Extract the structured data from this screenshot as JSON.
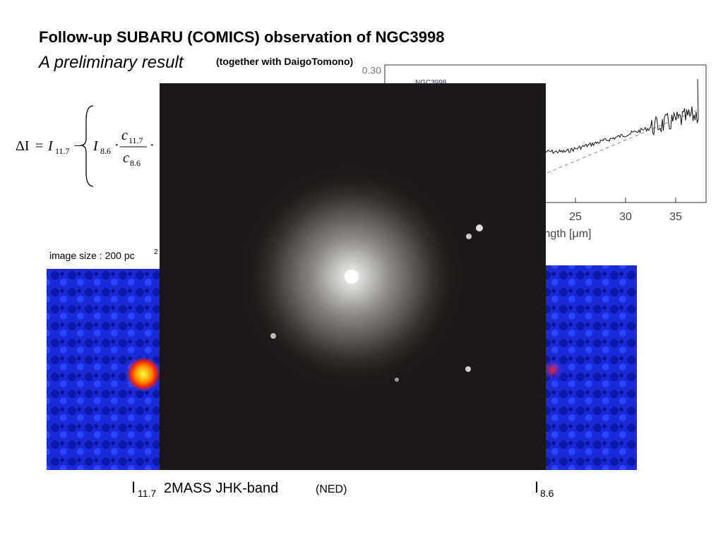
{
  "header": {
    "title": "Follow-up SUBARU (COMICS) observation of NGC3998",
    "subtitle": "A preliminary result",
    "credit": "(together with DaigoTomono)"
  },
  "formula": {
    "lhs": "ΔI",
    "eq": "=",
    "i1": "I",
    "i1_sub": "11.7",
    "minus": "−",
    "i2": "I",
    "i2_sub": "8.6",
    "dot1": "·",
    "c_num": "c",
    "c_num_sub": "11.7",
    "c_den": "c",
    "c_den_sub": "8.6",
    "dot2": "·"
  },
  "spectrum": {
    "y_label": "0.30",
    "legend": "NGC3998",
    "xticks": [
      "25",
      "30",
      "35"
    ],
    "x_label": "length [μm]"
  },
  "image_note": {
    "text": "image size  : 200 pc",
    "sup": "2"
  },
  "captions": {
    "left": "I",
    "left_sub": "11.7",
    "center": "2MASS JHK-band",
    "center_note": "(NED)",
    "right": "I",
    "right_sub": "8.6"
  }
}
